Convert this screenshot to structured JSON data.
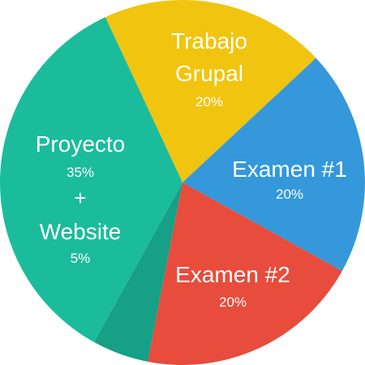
{
  "chart_data": {
    "type": "pie",
    "slices": [
      {
        "key": "trabajo",
        "label_lines": [
          "Trabajo",
          "Grupal"
        ],
        "value": 20,
        "pct_label": "20%",
        "color": "#f1c40f"
      },
      {
        "key": "examen1",
        "label_lines": [
          "Examen #1"
        ],
        "value": 20,
        "pct_label": "20%",
        "color": "#3498db"
      },
      {
        "key": "examen2",
        "label_lines": [
          "Examen #2"
        ],
        "value": 20,
        "pct_label": "20%",
        "color": "#e74c3c"
      },
      {
        "key": "website",
        "label_lines": [
          "Website"
        ],
        "value": 5,
        "pct_label": "5%",
        "color": "#16a085"
      },
      {
        "key": "proyecto",
        "label_lines": [
          "Proyecto"
        ],
        "value": 35,
        "pct_label": "35%",
        "color": "#1abc9c"
      }
    ],
    "combined_label": {
      "line1": "Proyecto",
      "pct1": "35%",
      "joiner": "+",
      "line2": "Website",
      "pct2": "5%"
    }
  }
}
